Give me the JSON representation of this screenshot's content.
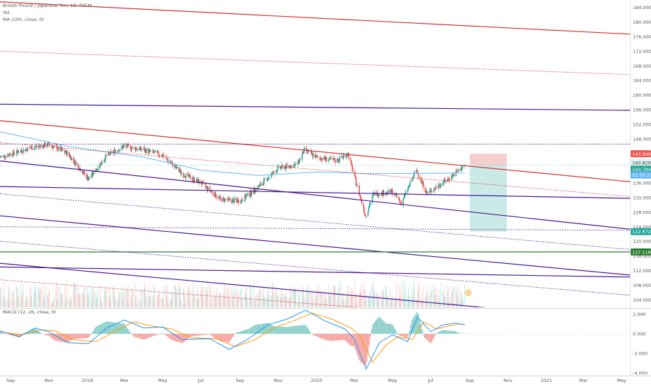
{
  "legend": {
    "symbol": "British Pound / Japanese Yen, 1D, FXCM",
    "vol": "Vol",
    "ma": "MA (200, close, 0)"
  },
  "macd_legend": "MACD (12, 26, close, 9)",
  "colors": {
    "red_line": "#d32f2f",
    "purple_line": "#4a148c",
    "green_line": "#2e7d32",
    "ma_line": "#64b5f6",
    "up_candle": "#26a69a",
    "down_candle": "#ef5350",
    "macd_line": "#2196f3",
    "signal_line": "#ff9800",
    "stop_zone": "#f6c6c6",
    "target_zone": "#bfe6e3"
  },
  "chart_data": [
    {
      "type": "candlestick",
      "title": "British Pound / Japanese Yen, 1D, FXCM",
      "x_ticks": [
        "Sep",
        "Nov",
        "2019",
        "Mar",
        "May",
        "Jul",
        "Sep",
        "Nov",
        "2020",
        "Mar",
        "May",
        "Jul",
        "Sep",
        "Nov",
        "2021",
        "Mar",
        "May"
      ],
      "y_ticks": [
        "184.000",
        "180.000",
        "176.000",
        "172.000",
        "168.000",
        "164.000",
        "160.000",
        "156.000",
        "152.000",
        "148.000",
        "144.000",
        "140.000",
        "136.000",
        "132.000",
        "128.000",
        "124.000",
        "120.000",
        "116.000",
        "112.000",
        "108.000",
        "104.000"
      ],
      "ylim": [
        102,
        186
      ],
      "series": [
        {
          "name": "Close path",
          "x": [
            "2018-08-15",
            "2018-10-01",
            "2018-11-01",
            "2018-12-01",
            "2019-01-03",
            "2019-02-01",
            "2019-03-01",
            "2019-04-01",
            "2019-05-01",
            "2019-06-01",
            "2019-07-01",
            "2019-08-01",
            "2019-09-01",
            "2019-10-01",
            "2019-11-01",
            "2019-12-01",
            "2019-12-13",
            "2020-01-01",
            "2020-02-01",
            "2020-02-20",
            "2020-03-19",
            "2020-04-01",
            "2020-05-01",
            "2020-05-15",
            "2020-06-08",
            "2020-06-25",
            "2020-07-15",
            "2020-08-01",
            "2020-08-24"
          ],
          "values": [
            143.0,
            145.5,
            146.5,
            144.0,
            137.0,
            143.5,
            146.0,
            145.0,
            143.5,
            138.5,
            136.0,
            131.5,
            131.0,
            135.0,
            140.0,
            141.0,
            145.0,
            143.0,
            142.0,
            144.0,
            127.0,
            133.0,
            133.5,
            130.5,
            139.5,
            133.0,
            135.5,
            137.5,
            140.8
          ]
        },
        {
          "name": "MA (200, close, 0)",
          "x": [
            "2018-08-15",
            "2018-12-01",
            "2019-04-01",
            "2019-07-01",
            "2019-10-01",
            "2020-01-01",
            "2020-04-01",
            "2020-07-01",
            "2020-08-24"
          ],
          "values": [
            150.0,
            146.0,
            143.0,
            139.5,
            138.0,
            139.0,
            138.5,
            138.6,
            138.7
          ]
        }
      ],
      "markers": {
        "last_price": "140.820",
        "stop_level": "143.946",
        "target_level": "122.672",
        "ma_value": "140.784",
        "countdown": "02:50:20",
        "green_level": "117.118"
      },
      "position_tool": {
        "entry": 140.8,
        "stop": 143.946,
        "target": 122.672,
        "start": "2020-09-01",
        "end": "2020-10-30"
      },
      "trendlines": [
        {
          "color": "red",
          "style": "solid",
          "from": [
            "2018-08-15",
            185.5
          ],
          "to": [
            "2021-06-01",
            176.5
          ]
        },
        {
          "color": "red",
          "style": "dotted",
          "from": [
            "2018-08-15",
            172.0
          ],
          "to": [
            "2021-06-01",
            165.5
          ]
        },
        {
          "color": "purple",
          "style": "solid",
          "from": [
            "2018-08-15",
            157.5
          ],
          "to": [
            "2021-06-01",
            155.8
          ]
        },
        {
          "color": "red",
          "style": "solid",
          "from": [
            "2018-08-15",
            153.0
          ],
          "to": [
            "2021-06-01",
            136.0
          ]
        },
        {
          "color": "purple",
          "style": "dotted",
          "from": [
            "2018-08-15",
            146.6
          ],
          "to": [
            "2021-06-01",
            146.6
          ]
        },
        {
          "color": "red",
          "style": "dotted",
          "from": [
            "2018-08-15",
            147.0
          ],
          "to": [
            "2021-06-01",
            132.0
          ]
        },
        {
          "color": "purple",
          "style": "solid",
          "from": [
            "2018-08-15",
            142.0
          ],
          "to": [
            "2021-06-01",
            123.0
          ]
        },
        {
          "color": "purple",
          "style": "solid",
          "from": [
            "2018-08-15",
            135.0
          ],
          "to": [
            "2021-06-01",
            131.7
          ]
        },
        {
          "color": "purple",
          "style": "dotted",
          "from": [
            "2018-08-15",
            133.0
          ],
          "to": [
            "2021-06-01",
            117.5
          ]
        },
        {
          "color": "purple",
          "style": "solid",
          "from": [
            "2018-08-15",
            127.0
          ],
          "to": [
            "2021-06-01",
            110.5
          ]
        },
        {
          "color": "purple",
          "style": "dotted",
          "from": [
            "2018-08-15",
            124.0
          ],
          "to": [
            "2021-06-01",
            123.0
          ]
        },
        {
          "color": "green",
          "style": "solid",
          "from": [
            "2018-08-15",
            117.1
          ],
          "to": [
            "2021-06-01",
            117.1
          ]
        },
        {
          "color": "purple",
          "style": "dotted",
          "from": [
            "2018-08-15",
            120.0
          ],
          "to": [
            "2021-06-01",
            105.0
          ]
        },
        {
          "color": "purple",
          "style": "solid",
          "from": [
            "2018-08-15",
            113.0
          ],
          "to": [
            "2021-06-01",
            110.2
          ]
        },
        {
          "color": "purple",
          "style": "solid",
          "from": [
            "2018-08-15",
            114.0
          ],
          "to": [
            "2021-06-01",
            98.0
          ]
        },
        {
          "color": "red",
          "style": "dotted",
          "from": [
            "2018-08-15",
            109.5
          ],
          "to": [
            "2021-06-01",
            96.0
          ]
        }
      ]
    },
    {
      "type": "line",
      "title": "MACD (12, 26, close, 9)",
      "y_ticks": [
        "2.000",
        "0.000",
        "-2.000",
        "-4.000"
      ],
      "ylim": [
        -4.2,
        2.5
      ],
      "series": [
        {
          "name": "MACD",
          "x": [
            "2018-08-15",
            "2018-09-15",
            "2018-10-10",
            "2018-11-01",
            "2018-12-01",
            "2019-01-03",
            "2019-02-01",
            "2019-03-01",
            "2019-04-01",
            "2019-05-01",
            "2019-06-01",
            "2019-07-15",
            "2019-08-15",
            "2019-09-15",
            "2019-10-15",
            "2019-11-15",
            "2019-12-15",
            "2020-01-15",
            "2020-02-15",
            "2020-03-01",
            "2020-03-20",
            "2020-04-10",
            "2020-05-01",
            "2020-05-25",
            "2020-06-10",
            "2020-07-01",
            "2020-07-20",
            "2020-08-10",
            "2020-08-24"
          ],
          "values": [
            0.3,
            -0.3,
            0.6,
            0.2,
            -0.9,
            -1.0,
            0.6,
            1.4,
            0.6,
            0.7,
            -0.6,
            -0.5,
            -1.6,
            -0.5,
            0.9,
            1.5,
            2.4,
            1.3,
            0.5,
            -0.5,
            -3.6,
            -0.9,
            -0.1,
            -0.8,
            1.7,
            0.2,
            0.9,
            1.1,
            0.9
          ]
        },
        {
          "name": "Signal",
          "x": [
            "2018-08-15",
            "2018-09-20",
            "2018-10-20",
            "2018-11-10",
            "2018-12-10",
            "2019-01-15",
            "2019-02-15",
            "2019-03-15",
            "2019-04-15",
            "2019-05-15",
            "2019-06-15",
            "2019-07-25",
            "2019-08-25",
            "2019-09-25",
            "2019-10-25",
            "2019-11-25",
            "2019-12-25",
            "2020-01-25",
            "2020-02-25",
            "2020-03-10",
            "2020-03-30",
            "2020-04-20",
            "2020-05-10",
            "2020-06-01",
            "2020-06-20",
            "2020-07-10",
            "2020-07-30",
            "2020-08-15",
            "2020-08-24"
          ],
          "values": [
            0.2,
            -0.1,
            0.4,
            0.3,
            -0.6,
            -0.8,
            0.3,
            1.2,
            0.8,
            0.5,
            -0.4,
            -0.5,
            -1.3,
            -0.6,
            0.6,
            1.3,
            2.1,
            1.5,
            0.6,
            -0.2,
            -2.9,
            -1.2,
            -0.3,
            -0.6,
            1.2,
            0.5,
            0.8,
            1.0,
            0.9
          ]
        }
      ]
    }
  ],
  "x_axis_labels": [
    "Sep",
    "Nov",
    "2019",
    "Mar",
    "May",
    "Jul",
    "Sep",
    "Nov",
    "2020",
    "Mar",
    "May",
    "Jul",
    "Sep",
    "Nov",
    "2021",
    "Mar",
    "May"
  ]
}
